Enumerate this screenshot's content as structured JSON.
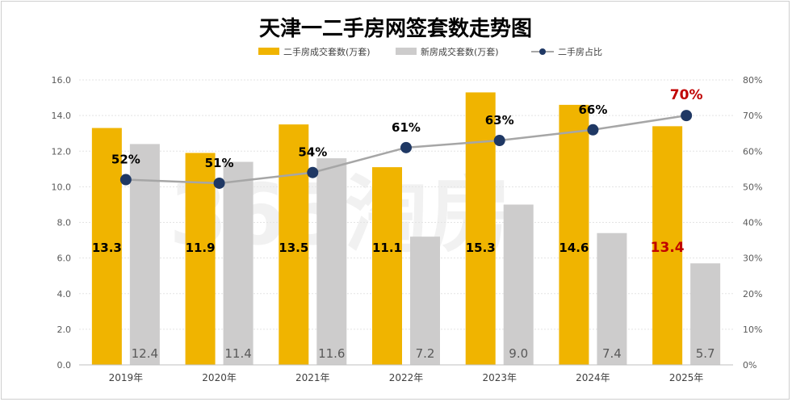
{
  "chart_data": {
    "type": "bar",
    "title": "天津一二手房网签套数走势图",
    "categories": [
      "2019年",
      "2020年",
      "2021年",
      "2022年",
      "2023年",
      "2024年",
      "2025年"
    ],
    "series": [
      {
        "name": "二手房成交套数(万套)",
        "kind": "bar",
        "axis": "left",
        "color": "#F0B400",
        "values": [
          13.3,
          11.9,
          13.5,
          11.1,
          15.3,
          14.6,
          13.4
        ],
        "labels": [
          "13.3",
          "11.9",
          "13.5",
          "11.1",
          "15.3",
          "14.6",
          "13.4"
        ]
      },
      {
        "name": "新房成交套数(万套)",
        "kind": "bar",
        "axis": "left",
        "color": "#CDCCCC",
        "values": [
          12.4,
          11.4,
          11.6,
          7.2,
          9.0,
          7.4,
          5.7
        ],
        "labels": [
          "12.4",
          "11.4",
          "11.6",
          "7.2",
          "9.0",
          "7.4",
          "5.7"
        ]
      },
      {
        "name": "二手房占比",
        "kind": "line",
        "axis": "right",
        "color": "#A6A6A6",
        "marker_color": "#1F3864",
        "values": [
          52,
          51,
          54,
          61,
          63,
          66,
          70
        ],
        "labels": [
          "52%",
          "51%",
          "54%",
          "61%",
          "63%",
          "66%",
          "70%"
        ]
      }
    ],
    "y_left": {
      "range": [
        0,
        16
      ],
      "ticks": [
        "0.0",
        "2.0",
        "4.0",
        "6.0",
        "8.0",
        "10.0",
        "12.0",
        "14.0",
        "16.0"
      ]
    },
    "y_right": {
      "range": [
        0,
        80
      ],
      "ticks": [
        "0%",
        "10%",
        "20%",
        "30%",
        "40%",
        "50%",
        "60%",
        "70%",
        "80%"
      ]
    },
    "highlight": {
      "category_index": 6,
      "color": "#C00000"
    },
    "gridlines": true,
    "legend_position": "top",
    "watermark": "365淘房"
  }
}
